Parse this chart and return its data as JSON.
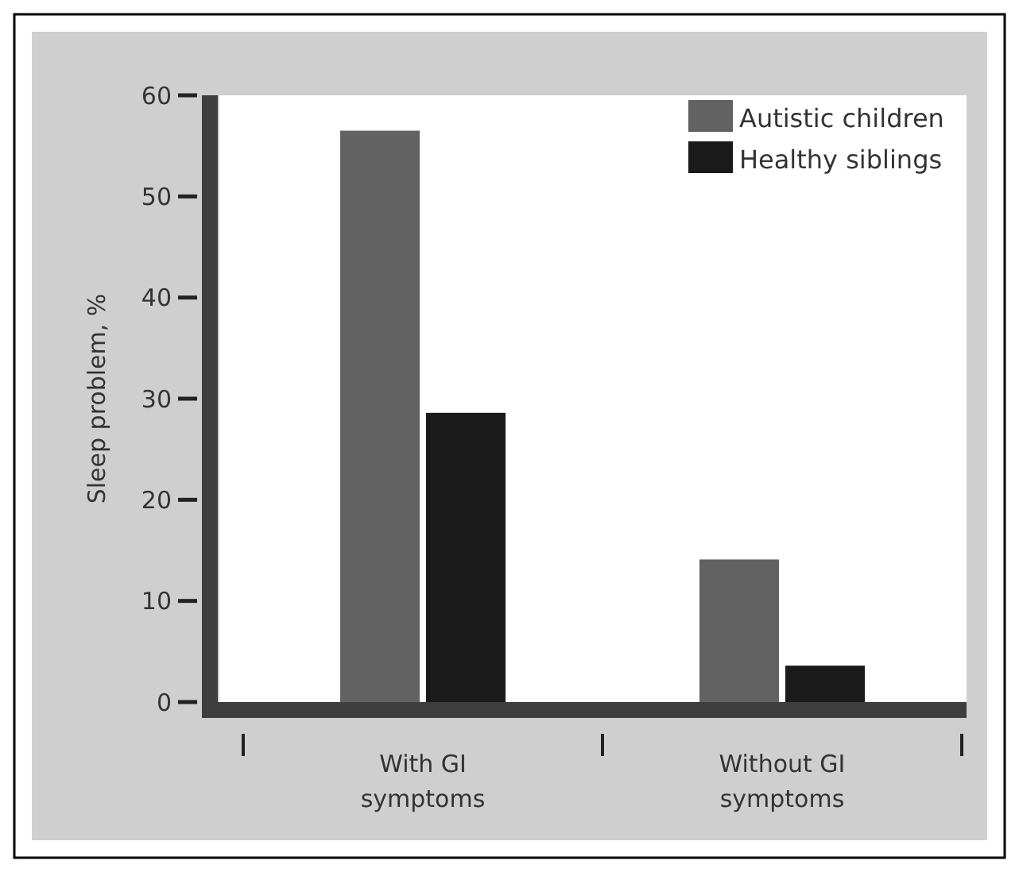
{
  "chart_data": {
    "type": "bar",
    "ylabel": "Sleep problem, %",
    "categories": [
      "With GI symptoms",
      "Without GI symptoms"
    ],
    "series": [
      {
        "name": "Autistic children",
        "color": "#626262",
        "values": [
          56.5,
          14.1
        ]
      },
      {
        "name": "Healthy siblings",
        "color": "#1a1a1a",
        "values": [
          28.6,
          3.6
        ]
      }
    ],
    "ylim": [
      0,
      60
    ],
    "yticks": [
      0,
      10,
      20,
      30,
      40,
      50,
      60
    ],
    "legend": "top right",
    "grid": false
  }
}
